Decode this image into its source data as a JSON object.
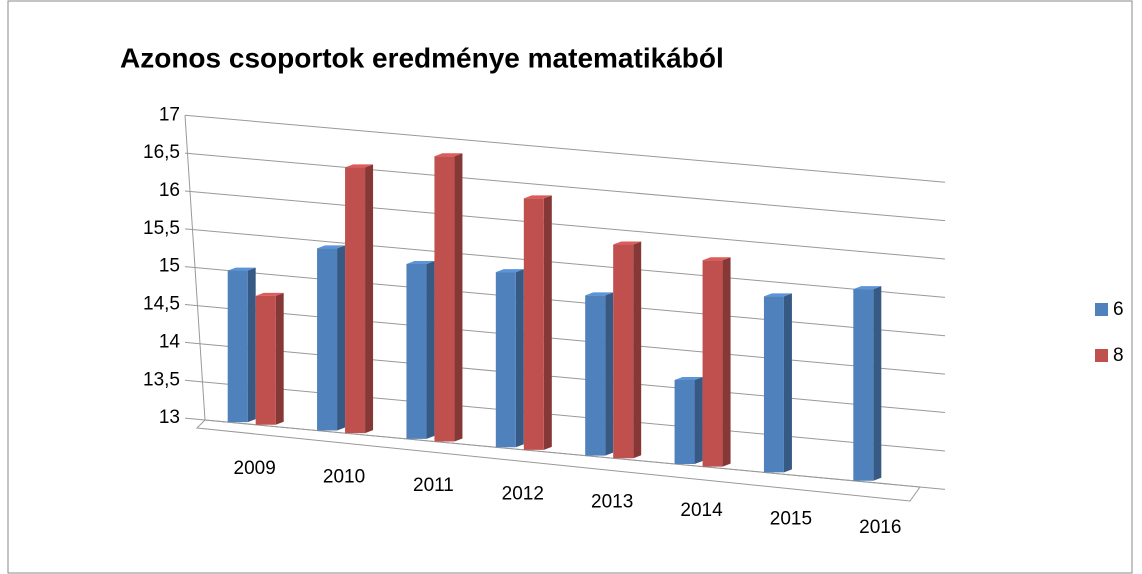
{
  "chart_data": {
    "type": "bar3d",
    "title": "Azonos csoportok eredménye matematikából",
    "categories": [
      "2009",
      "2010",
      "2011",
      "2012",
      "2013",
      "2014",
      "2015",
      "2016"
    ],
    "series": [
      {
        "name": "6",
        "color": "#4f81bd",
        "values": [
          15.0,
          15.4,
          15.3,
          15.3,
          15.1,
          14.1,
          15.3,
          15.5
        ]
      },
      {
        "name": "8",
        "color": "#c0504d",
        "values": [
          14.7,
          16.5,
          16.75,
          16.3,
          15.8,
          15.7,
          null,
          null
        ]
      }
    ],
    "ylim": [
      13,
      17
    ],
    "yticks": [
      13,
      {
        "value": 13.5,
        "label": "13,5"
      },
      14,
      {
        "value": 14.5,
        "label": "14,5"
      },
      15,
      {
        "value": 15.5,
        "label": "15,5"
      },
      16,
      {
        "value": 16.5,
        "label": "16,5"
      },
      17
    ],
    "grid": true,
    "legend": "right"
  }
}
